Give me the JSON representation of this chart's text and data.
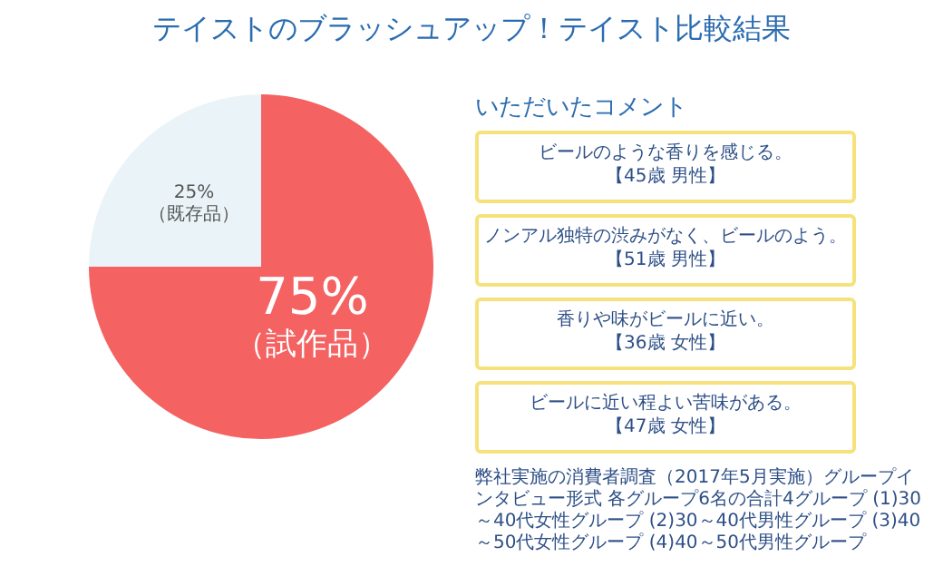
{
  "chart_data": {
    "type": "pie",
    "title": "テイストのブラッシュアップ！テイスト比較結果",
    "categories": [
      "（既存品）",
      "（試作品）"
    ],
    "values": [
      25,
      75
    ],
    "value_labels": [
      "25%",
      "75%"
    ],
    "colors": [
      "#eaf4f8",
      "#f46262"
    ],
    "annotations": [
      "いただいたコメント",
      "ビールのような香りを感じる。",
      "【45歳 男性】",
      "ノンアル独特の渋みがなく、ビールのよう。",
      "【51歳 男性】",
      "香りや味がビールに近い。",
      "【36歳 女性】",
      "ビールに近い程よい苦味がある。",
      "【47歳 女性】",
      "弊社実施の消費者調査（2017年5月実施）グループインタビュー形式 各グループ6名の合計4グループ (1)30～40代女性グループ (2)30～40代男性グループ (3)40～50代女性グループ (4)40～50代男性グループ"
    ]
  }
}
